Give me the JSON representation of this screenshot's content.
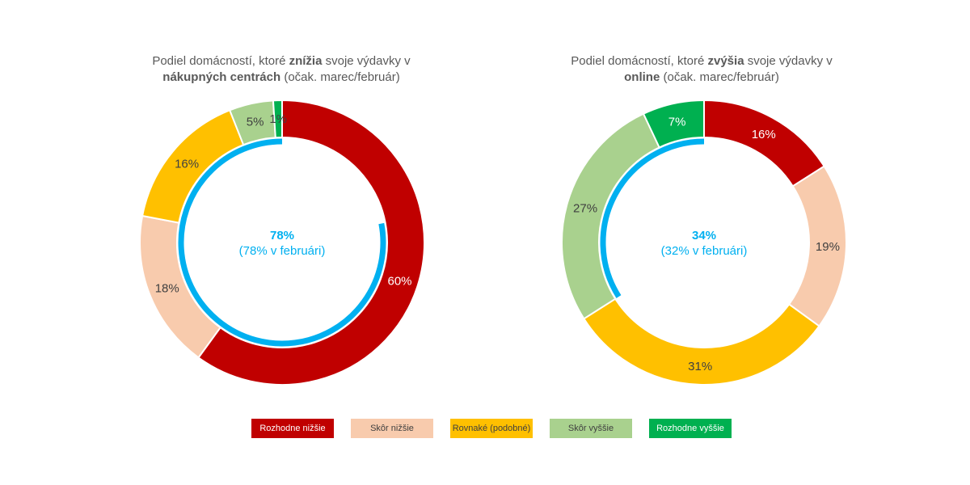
{
  "chart_data": [
    {
      "type": "donut",
      "title": {
        "pre": "Podiel domácností, ktoré ",
        "bold1": "znížia",
        "mid": " svoje výdavky v",
        "bold2": "nákupných centrách",
        "post": " (očak. marec/február)"
      },
      "categories": [
        "Rozhodne nižšie",
        "Skôr nižšie",
        "Rovnaké (podobné)",
        "Skôr vyššie",
        "Rozhodne vyššie"
      ],
      "values": [
        60,
        18,
        16,
        5,
        1
      ],
      "value_labels": [
        "60%",
        "18%",
        "16%",
        "5%",
        "1%"
      ],
      "highlight": {
        "value": 78,
        "label": "78%",
        "sublabel": "(78% v februári)"
      }
    },
    {
      "type": "donut",
      "title": {
        "pre": "Podiel domácností, ktoré ",
        "bold1": "zvýšia",
        "mid": " svoje výdavky v",
        "bold2": "online",
        "post": " (očak. marec/február)"
      },
      "categories": [
        "Rozhodne nižšie",
        "Skôr nižšie",
        "Rovnaké (podobné)",
        "Skôr vyššie",
        "Rozhodne vyššie"
      ],
      "values": [
        16,
        19,
        31,
        27,
        7
      ],
      "value_labels": [
        "16%",
        "19%",
        "31%",
        "27%",
        "7%"
      ],
      "highlight": {
        "value": 34,
        "label": "34%",
        "sublabel": "(32% v februári)"
      }
    }
  ],
  "legend": [
    {
      "label": "Rozhodne nižšie",
      "color": "#C00000",
      "text_color": "#ffffff"
    },
    {
      "label": "Skôr nižšie",
      "color": "#F8CBAD",
      "text_color": "#404040"
    },
    {
      "label": "Rovnaké (podobné)",
      "color": "#FFC000",
      "text_color": "#404040"
    },
    {
      "label": "Skôr vyššie",
      "color": "#A9D18E",
      "text_color": "#404040"
    },
    {
      "label": "Rozhodne vyššie",
      "color": "#00B050",
      "text_color": "#ffffff"
    }
  ],
  "colors": {
    "highlight": "#00B0F0",
    "label_light": "#ffffff",
    "label_dark": "#404040"
  }
}
